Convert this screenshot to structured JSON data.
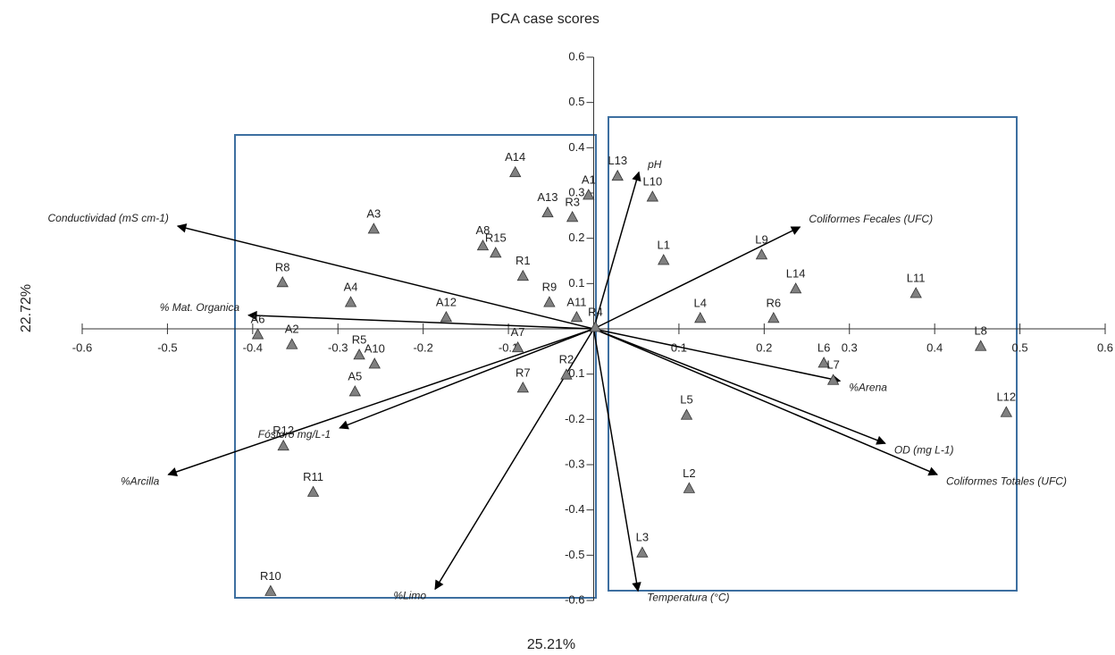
{
  "chart_data": {
    "type": "scatter",
    "title": "PCA case scores",
    "xlabel": "25.21%",
    "ylabel": "22.72%",
    "xlim": [
      -0.6,
      0.6
    ],
    "ylim": [
      -0.6,
      0.6
    ],
    "xticks": [
      -0.6,
      -0.5,
      -0.4,
      -0.3,
      -0.2,
      -0.1,
      0.1,
      0.2,
      0.3,
      0.4,
      0.5,
      0.6
    ],
    "yticks": [
      0.6,
      0.5,
      0.4,
      0.3,
      0.2,
      0.1,
      -0.1,
      -0.2,
      -0.3,
      -0.4,
      -0.5,
      -0.6
    ],
    "point_color": "#808080",
    "points": [
      {
        "label": "A14",
        "x": -0.092,
        "y": 0.346
      },
      {
        "label": "A1",
        "x": -0.006,
        "y": 0.296
      },
      {
        "label": "A13",
        "x": -0.054,
        "y": 0.257
      },
      {
        "label": "R3",
        "x": -0.025,
        "y": 0.247
      },
      {
        "label": "A3",
        "x": -0.258,
        "y": 0.221
      },
      {
        "label": "A8",
        "x": -0.13,
        "y": 0.184
      },
      {
        "label": "R15",
        "x": -0.115,
        "y": 0.168
      },
      {
        "label": "R1",
        "x": -0.083,
        "y": 0.117
      },
      {
        "label": "R8",
        "x": -0.365,
        "y": 0.103
      },
      {
        "label": "R9",
        "x": -0.052,
        "y": 0.059
      },
      {
        "label": "A4",
        "x": -0.285,
        "y": 0.059
      },
      {
        "label": "A12",
        "x": -0.173,
        "y": 0.026
      },
      {
        "label": "A11",
        "x": -0.02,
        "y": 0.026
      },
      {
        "label": "R4",
        "x": 0.002,
        "y": 0.004
      },
      {
        "label": "A6",
        "x": -0.394,
        "y": -0.012
      },
      {
        "label": "A2",
        "x": -0.354,
        "y": -0.034
      },
      {
        "label": "R5",
        "x": -0.275,
        "y": -0.057
      },
      {
        "label": "A10",
        "x": -0.257,
        "y": -0.077
      },
      {
        "label": "A7",
        "x": -0.089,
        "y": -0.041
      },
      {
        "label": "R2",
        "x": -0.032,
        "y": -0.101
      },
      {
        "label": "R7",
        "x": -0.083,
        "y": -0.13
      },
      {
        "label": "A5",
        "x": -0.28,
        "y": -0.138
      },
      {
        "label": "R6",
        "x": 0.211,
        "y": 0.024
      },
      {
        "label": "R12",
        "x": -0.364,
        "y": -0.258
      },
      {
        "label": "R11",
        "x": -0.329,
        "y": -0.36
      },
      {
        "label": "R10",
        "x": -0.379,
        "y": -0.579
      },
      {
        "label": "L13",
        "x": 0.028,
        "y": 0.338
      },
      {
        "label": "L10",
        "x": 0.069,
        "y": 0.292
      },
      {
        "label": "L1",
        "x": 0.082,
        "y": 0.152
      },
      {
        "label": "L9",
        "x": 0.197,
        "y": 0.164
      },
      {
        "label": "L14",
        "x": 0.237,
        "y": 0.089
      },
      {
        "label": "L11",
        "x": 0.378,
        "y": 0.079
      },
      {
        "label": "L4",
        "x": 0.125,
        "y": 0.024
      },
      {
        "label": "L8",
        "x": 0.454,
        "y": -0.038
      },
      {
        "label": "L6",
        "x": 0.27,
        "y": -0.075
      },
      {
        "label": "L7",
        "x": 0.281,
        "y": -0.113
      },
      {
        "label": "L12",
        "x": 0.484,
        "y": -0.184
      },
      {
        "label": "L5",
        "x": 0.109,
        "y": -0.19
      },
      {
        "label": "L2",
        "x": 0.112,
        "y": -0.352
      },
      {
        "label": "L3",
        "x": 0.057,
        "y": -0.494
      }
    ],
    "vectors": [
      {
        "label": "Conductividad (mS cm-1)",
        "x": -0.488,
        "y": 0.227
      },
      {
        "label": "% Mat. Organica",
        "x": -0.405,
        "y": 0.03
      },
      {
        "label": "Fósforo mg/L-1",
        "x": -0.298,
        "y": -0.219
      },
      {
        "label": "%Arcilla",
        "x": -0.499,
        "y": -0.322
      },
      {
        "label": "%Limo",
        "x": -0.186,
        "y": -0.575
      },
      {
        "label": "Temperatura (°C)",
        "x": 0.052,
        "y": -0.579
      },
      {
        "label": "pH",
        "x": 0.053,
        "y": 0.346
      },
      {
        "label": "Coliformes Fecales (UFC)",
        "x": 0.242,
        "y": 0.225
      },
      {
        "label": "%Arena",
        "x": 0.289,
        "y": -0.115
      },
      {
        "label": "OD (mg L-1)",
        "x": 0.342,
        "y": -0.253
      },
      {
        "label": "Coliformes Totales (UFC)",
        "x": 0.403,
        "y": -0.322
      }
    ]
  }
}
